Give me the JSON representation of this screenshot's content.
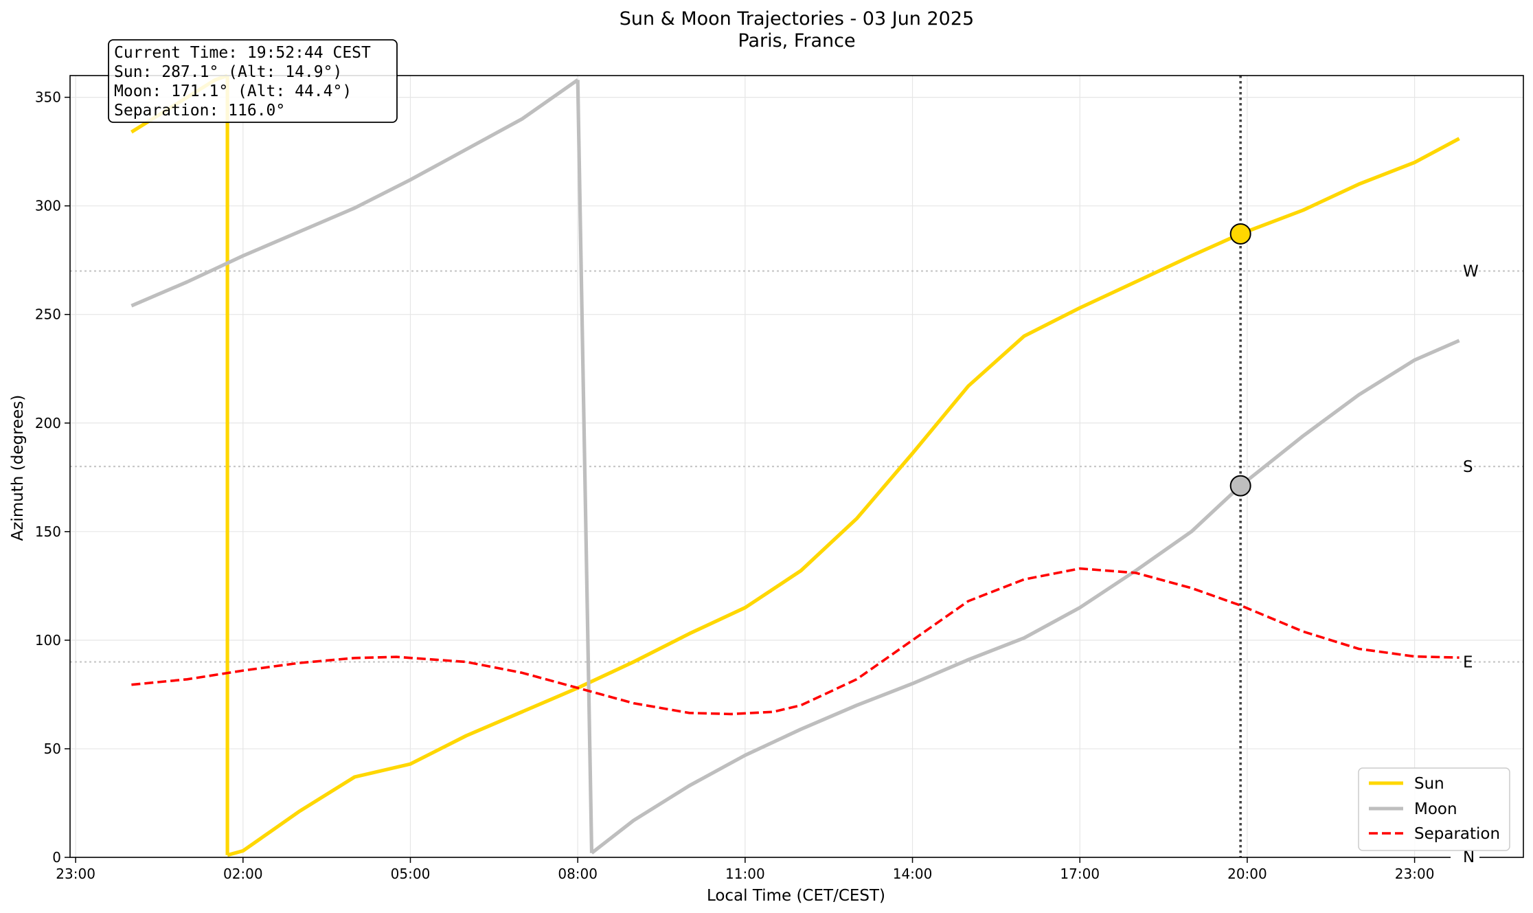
{
  "chart_data": {
    "type": "line",
    "title": "Sun & Moon Trajectories - 03 Jun 2025",
    "subtitle": "Paris, France",
    "xlabel": "Local Time (CET/CEST)",
    "ylabel": "Azimuth (degrees)",
    "x_unit": "hours relative to 00:00 on 03 Jun 2025 (local time)",
    "xlim": [
      -1.1,
      24.95
    ],
    "ylim": [
      0,
      360
    ],
    "x_ticks": [
      {
        "x": -1,
        "label": "23:00"
      },
      {
        "x": 2,
        "label": "02:00"
      },
      {
        "x": 5,
        "label": "05:00"
      },
      {
        "x": 8,
        "label": "08:00"
      },
      {
        "x": 11,
        "label": "11:00"
      },
      {
        "x": 14,
        "label": "14:00"
      },
      {
        "x": 17,
        "label": "17:00"
      },
      {
        "x": 20,
        "label": "20:00"
      },
      {
        "x": 23,
        "label": "23:00"
      }
    ],
    "y_ticks": [
      {
        "y": 0,
        "label": "0"
      },
      {
        "y": 50,
        "label": "50"
      },
      {
        "y": 100,
        "label": "100"
      },
      {
        "y": 150,
        "label": "150"
      },
      {
        "y": 200,
        "label": "200"
      },
      {
        "y": 250,
        "label": "250"
      },
      {
        "y": 300,
        "label": "300"
      },
      {
        "y": 350,
        "label": "350"
      }
    ],
    "grid": true,
    "series": [
      {
        "name": "Sun",
        "color": "#FFD700",
        "style": "solid",
        "points": [
          [
            0.0,
            334
          ],
          [
            0.5,
            342
          ],
          [
            1.0,
            350
          ],
          [
            1.5,
            358
          ],
          [
            1.72,
            360
          ],
          [
            1.72,
            1
          ],
          [
            2.0,
            3
          ],
          [
            2.5,
            12
          ],
          [
            3.0,
            21
          ],
          [
            4.0,
            37
          ],
          [
            5.0,
            43
          ],
          [
            6.0,
            56
          ],
          [
            7.0,
            67
          ],
          [
            8.0,
            78
          ],
          [
            9.0,
            90
          ],
          [
            10.0,
            103
          ],
          [
            11.0,
            115
          ],
          [
            12.0,
            132
          ],
          [
            13.0,
            156
          ],
          [
            14.0,
            186
          ],
          [
            15.0,
            217
          ],
          [
            16.0,
            240
          ],
          [
            17.0,
            253
          ],
          [
            18.0,
            265
          ],
          [
            19.0,
            277
          ],
          [
            19.88,
            287.1
          ],
          [
            21.0,
            298
          ],
          [
            22.0,
            310
          ],
          [
            23.0,
            320
          ],
          [
            23.8,
            331
          ]
        ]
      },
      {
        "name": "Moon",
        "color": "#BEBEBE",
        "style": "solid",
        "points": [
          [
            0.0,
            254
          ],
          [
            1.0,
            265
          ],
          [
            2.0,
            277
          ],
          [
            3.0,
            288
          ],
          [
            4.0,
            299
          ],
          [
            5.0,
            312
          ],
          [
            6.0,
            326
          ],
          [
            7.0,
            340
          ],
          [
            8.0,
            358
          ],
          [
            8.25,
            2
          ],
          [
            9.0,
            17
          ],
          [
            10.0,
            33
          ],
          [
            11.0,
            47
          ],
          [
            12.0,
            59
          ],
          [
            13.0,
            70
          ],
          [
            14.0,
            80
          ],
          [
            15.0,
            91
          ],
          [
            16.0,
            101
          ],
          [
            17.0,
            115
          ],
          [
            18.0,
            132
          ],
          [
            19.0,
            150
          ],
          [
            19.88,
            171.1
          ],
          [
            21.0,
            194
          ],
          [
            22.0,
            213
          ],
          [
            23.0,
            229
          ],
          [
            23.8,
            238
          ]
        ]
      },
      {
        "name": "Separation",
        "color": "#FF0000",
        "style": "dashed",
        "points": [
          [
            0.0,
            79.5
          ],
          [
            1.0,
            82
          ],
          [
            2.0,
            86
          ],
          [
            3.0,
            89.5
          ],
          [
            4.0,
            91.8
          ],
          [
            4.75,
            92.3
          ],
          [
            6.0,
            90
          ],
          [
            7.0,
            85
          ],
          [
            8.0,
            78
          ],
          [
            9.0,
            71
          ],
          [
            10.0,
            66.5
          ],
          [
            10.75,
            66
          ],
          [
            11.5,
            67
          ],
          [
            12.0,
            70
          ],
          [
            13.0,
            82
          ],
          [
            14.0,
            100
          ],
          [
            15.0,
            118
          ],
          [
            16.0,
            128
          ],
          [
            17.0,
            133
          ],
          [
            18.0,
            131
          ],
          [
            19.0,
            124
          ],
          [
            19.88,
            116
          ],
          [
            21.0,
            104
          ],
          [
            22.0,
            96
          ],
          [
            23.0,
            92.5
          ],
          [
            23.8,
            92
          ]
        ]
      }
    ],
    "current_time_x": 19.88,
    "markers": [
      {
        "name": "Sun",
        "x": 19.88,
        "y": 287.1,
        "color": "#FFD700"
      },
      {
        "name": "Moon",
        "x": 19.88,
        "y": 171.1,
        "color": "#BEBEBE"
      }
    ],
    "reference_lines": [
      {
        "y": 0,
        "label": "N"
      },
      {
        "y": 90,
        "label": "E"
      },
      {
        "y": 180,
        "label": "S"
      },
      {
        "y": 270,
        "label": "W"
      }
    ],
    "legend_placement": "lower-right",
    "info_box": {
      "placement": "top-left",
      "lines": [
        "Current Time: 19:52:44 CEST",
        "Sun: 287.1° (Alt: 14.9°)",
        "Moon: 171.1° (Alt: 44.4°)",
        "Separation: 116.0°"
      ]
    }
  }
}
